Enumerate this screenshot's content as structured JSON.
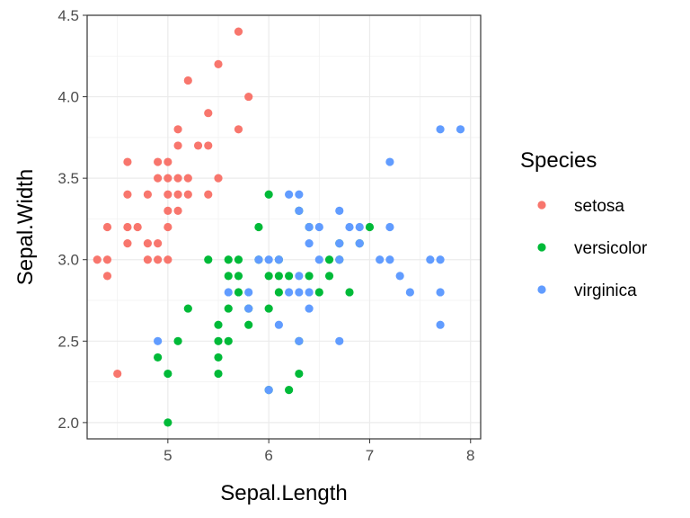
{
  "chart_data": {
    "type": "scatter",
    "xlabel": "Sepal.Length",
    "ylabel": "Sepal.Width",
    "xlim": [
      4.2,
      8.1
    ],
    "ylim": [
      1.9,
      4.5
    ],
    "xticks": [
      5,
      6,
      7,
      8
    ],
    "xtick_labels": [
      "5",
      "6",
      "7",
      "8"
    ],
    "yticks": [
      2.0,
      2.5,
      3.0,
      3.5,
      4.0,
      4.5
    ],
    "ytick_labels": [
      "2.0",
      "2.5",
      "3.0",
      "3.5",
      "4.0",
      "4.5"
    ],
    "grid": true,
    "legend": {
      "title": "Species",
      "position": "right"
    },
    "series": [
      {
        "name": "setosa",
        "color": "#F8766D",
        "points": [
          [
            5.7,
            4.4
          ],
          [
            5.5,
            4.2
          ],
          [
            5.2,
            4.1
          ],
          [
            5.8,
            4.0
          ],
          [
            5.4,
            3.9
          ],
          [
            5.1,
            3.8
          ],
          [
            5.7,
            3.8
          ],
          [
            5.1,
            3.7
          ],
          [
            5.3,
            3.7
          ],
          [
            5.4,
            3.7
          ],
          [
            4.6,
            3.6
          ],
          [
            4.9,
            3.6
          ],
          [
            5.0,
            3.6
          ],
          [
            4.9,
            3.5
          ],
          [
            5.0,
            3.5
          ],
          [
            5.1,
            3.5
          ],
          [
            5.2,
            3.5
          ],
          [
            5.5,
            3.5
          ],
          [
            4.6,
            3.4
          ],
          [
            4.8,
            3.4
          ],
          [
            5.0,
            3.4
          ],
          [
            5.1,
            3.4
          ],
          [
            5.2,
            3.4
          ],
          [
            5.4,
            3.4
          ],
          [
            5.0,
            3.3
          ],
          [
            5.1,
            3.3
          ],
          [
            4.4,
            3.2
          ],
          [
            4.6,
            3.2
          ],
          [
            4.7,
            3.2
          ],
          [
            5.0,
            3.2
          ],
          [
            4.6,
            3.1
          ],
          [
            4.8,
            3.1
          ],
          [
            4.9,
            3.1
          ],
          [
            4.3,
            3.0
          ],
          [
            4.4,
            3.0
          ],
          [
            4.8,
            3.0
          ],
          [
            4.9,
            3.0
          ],
          [
            5.0,
            3.0
          ],
          [
            4.4,
            2.9
          ],
          [
            4.5,
            2.3
          ]
        ]
      },
      {
        "name": "versicolor",
        "color": "#00BA38",
        "points": [
          [
            6.0,
            3.4
          ],
          [
            5.9,
            3.2
          ],
          [
            6.4,
            3.2
          ],
          [
            7.0,
            3.2
          ],
          [
            6.3,
            3.3
          ],
          [
            6.7,
            3.1
          ],
          [
            6.9,
            3.1
          ],
          [
            5.4,
            3.0
          ],
          [
            5.6,
            3.0
          ],
          [
            5.7,
            3.0
          ],
          [
            5.9,
            3.0
          ],
          [
            6.1,
            3.0
          ],
          [
            6.6,
            3.0
          ],
          [
            6.7,
            3.0
          ],
          [
            6.8,
            2.8
          ],
          [
            5.6,
            2.9
          ],
          [
            5.7,
            2.9
          ],
          [
            6.0,
            2.9
          ],
          [
            6.1,
            2.9
          ],
          [
            6.2,
            2.9
          ],
          [
            6.4,
            2.9
          ],
          [
            6.6,
            2.9
          ],
          [
            5.7,
            2.8
          ],
          [
            6.1,
            2.8
          ],
          [
            6.5,
            2.8
          ],
          [
            5.2,
            2.7
          ],
          [
            5.6,
            2.7
          ],
          [
            5.8,
            2.7
          ],
          [
            6.0,
            2.7
          ],
          [
            5.5,
            2.6
          ],
          [
            5.8,
            2.6
          ],
          [
            5.1,
            2.5
          ],
          [
            5.5,
            2.5
          ],
          [
            5.6,
            2.5
          ],
          [
            6.3,
            2.5
          ],
          [
            4.9,
            2.4
          ],
          [
            5.5,
            2.4
          ],
          [
            5.0,
            2.3
          ],
          [
            5.5,
            2.3
          ],
          [
            6.3,
            2.3
          ],
          [
            6.0,
            2.2
          ],
          [
            6.2,
            2.2
          ],
          [
            5.0,
            2.0
          ]
        ]
      },
      {
        "name": "virginica",
        "color": "#619CFF",
        "points": [
          [
            7.7,
            3.8
          ],
          [
            7.9,
            3.8
          ],
          [
            7.2,
            3.6
          ],
          [
            6.2,
            3.4
          ],
          [
            6.3,
            3.4
          ],
          [
            6.7,
            3.3
          ],
          [
            6.3,
            3.3
          ],
          [
            6.4,
            3.2
          ],
          [
            6.5,
            3.2
          ],
          [
            6.8,
            3.2
          ],
          [
            6.9,
            3.2
          ],
          [
            7.2,
            3.2
          ],
          [
            6.7,
            3.1
          ],
          [
            6.9,
            3.1
          ],
          [
            6.4,
            3.1
          ],
          [
            5.9,
            3.0
          ],
          [
            6.0,
            3.0
          ],
          [
            6.1,
            3.0
          ],
          [
            6.5,
            3.0
          ],
          [
            6.7,
            3.0
          ],
          [
            7.1,
            3.0
          ],
          [
            7.2,
            3.0
          ],
          [
            7.6,
            3.0
          ],
          [
            7.7,
            3.0
          ],
          [
            6.3,
            2.9
          ],
          [
            7.3,
            2.9
          ],
          [
            6.4,
            2.8
          ],
          [
            6.2,
            2.8
          ],
          [
            6.3,
            2.8
          ],
          [
            5.6,
            2.8
          ],
          [
            5.8,
            2.8
          ],
          [
            7.4,
            2.8
          ],
          [
            7.7,
            2.8
          ],
          [
            5.8,
            2.7
          ],
          [
            6.4,
            2.7
          ],
          [
            6.1,
            2.6
          ],
          [
            7.7,
            2.6
          ],
          [
            4.9,
            2.5
          ],
          [
            6.3,
            2.5
          ],
          [
            6.7,
            2.5
          ],
          [
            6.0,
            2.2
          ]
        ]
      }
    ]
  }
}
